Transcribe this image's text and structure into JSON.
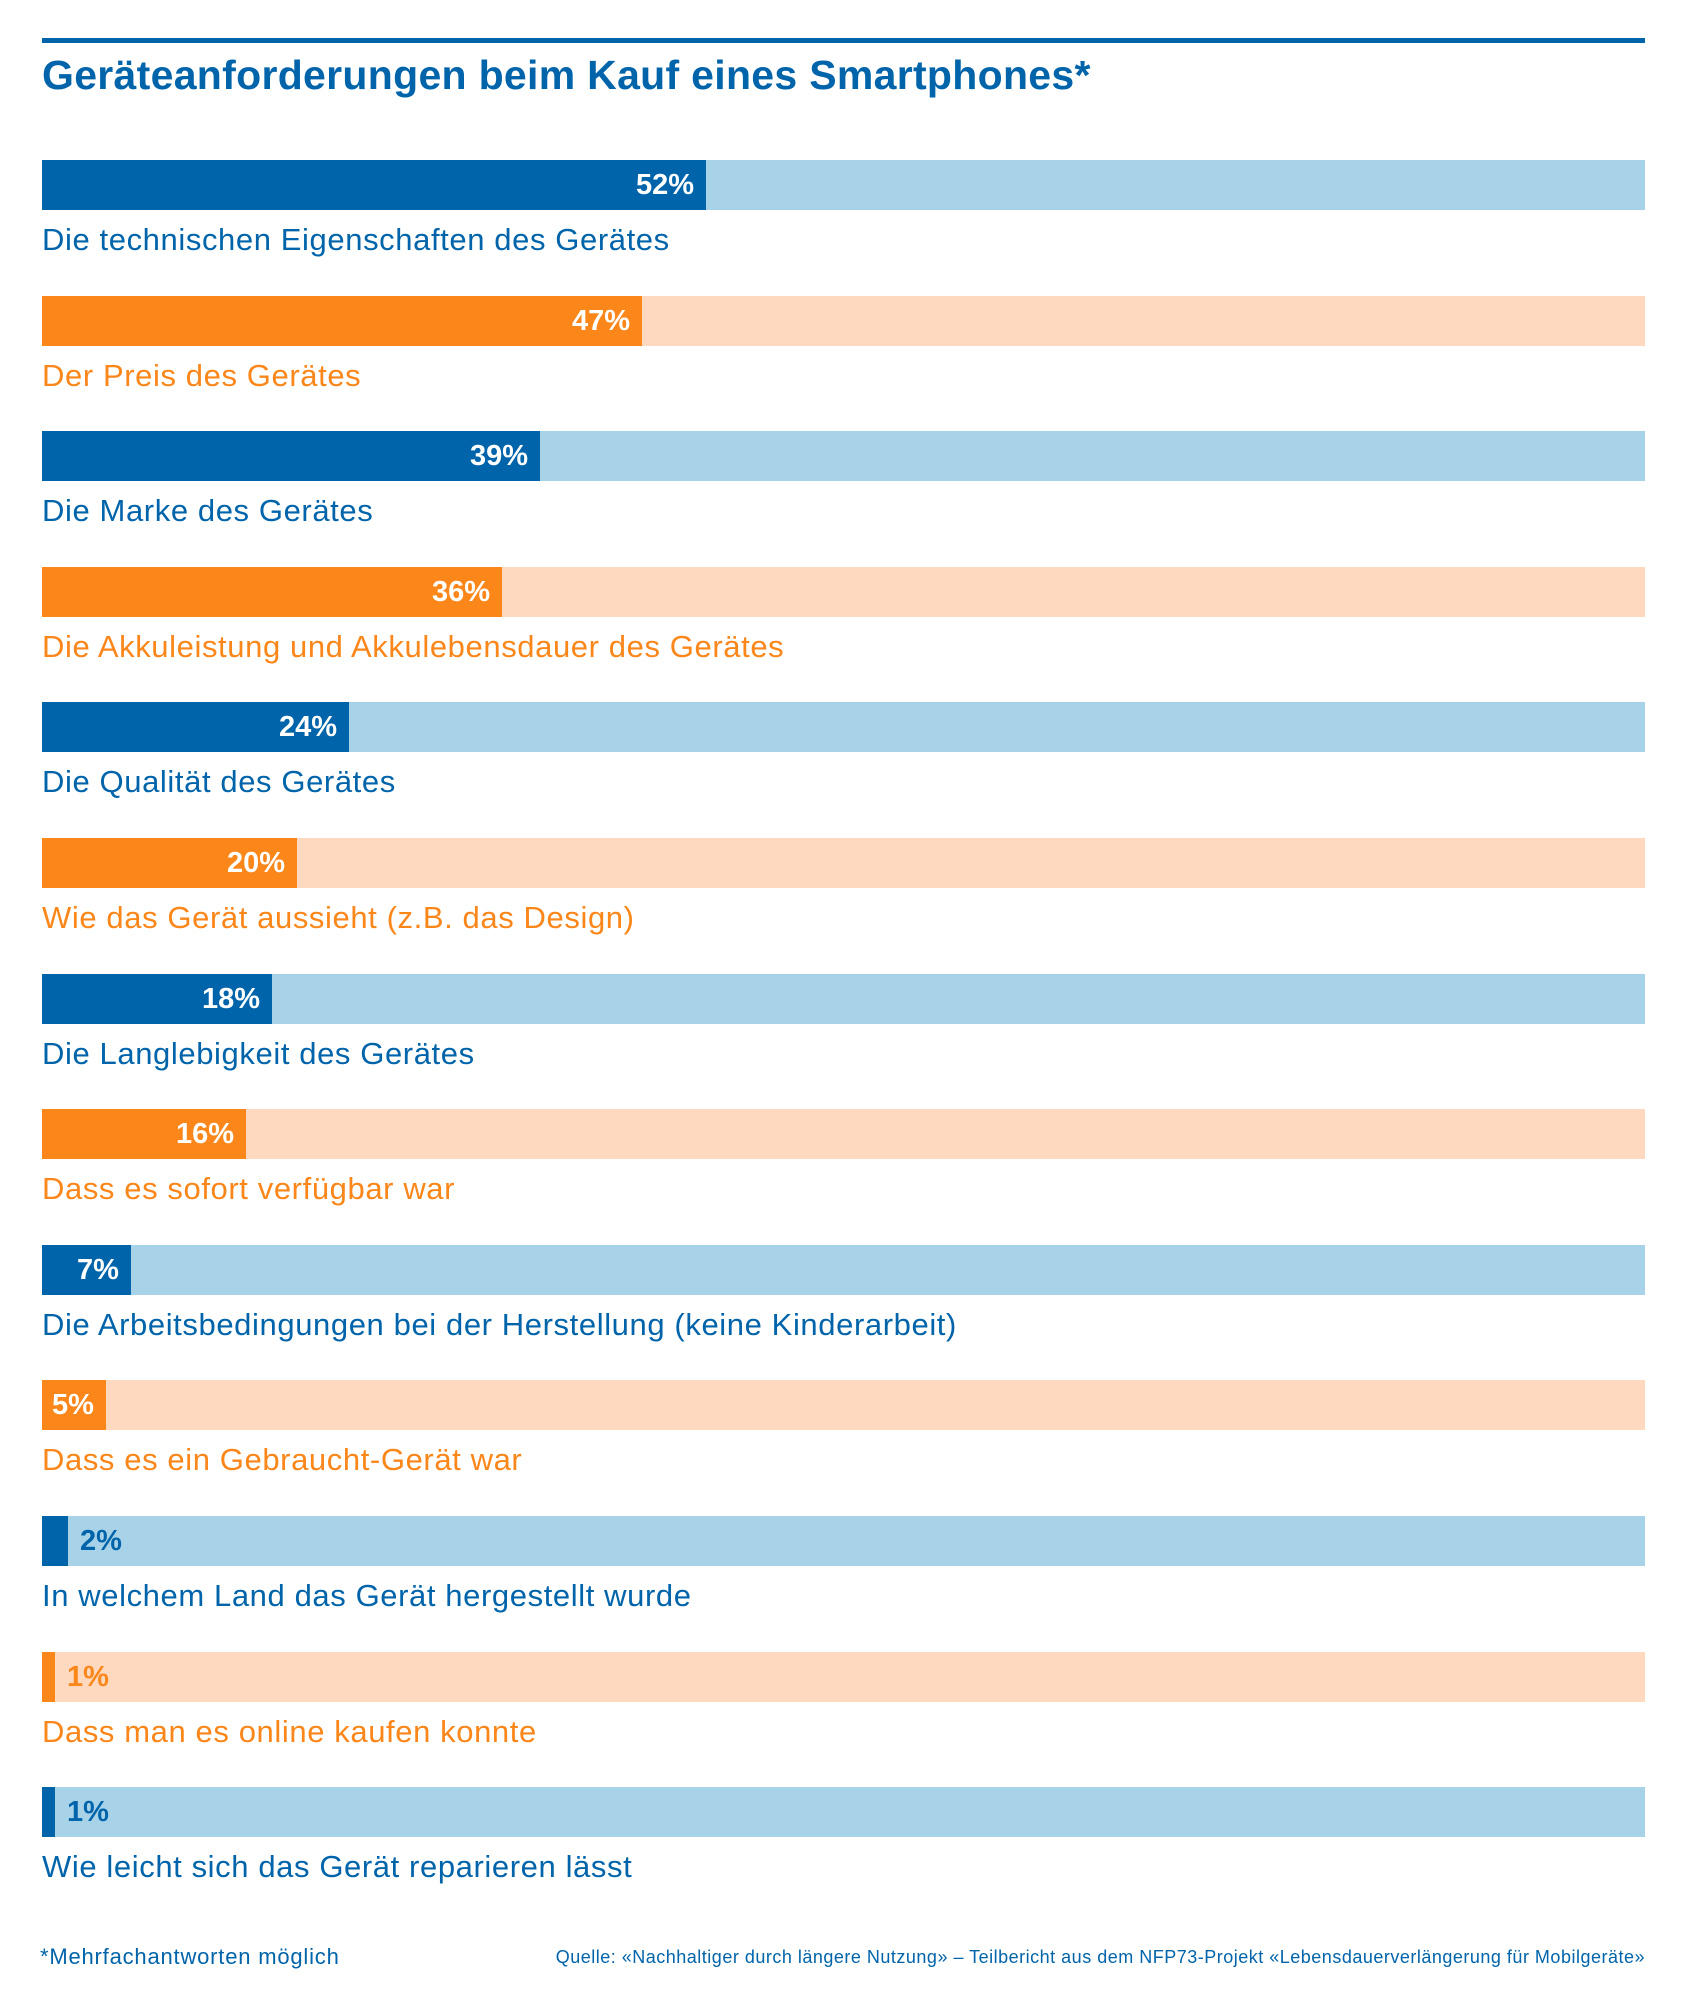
{
  "title": "Geräteanforderungen beim Kauf eines Smartphones*",
  "footnote": "*Mehrfachantworten möglich",
  "source": "Quelle: «Nachhaltiger durch längere Nutzung» – Teilbericht aus dem NFP73-Projekt «Lebensdauerverlängerung für Mobilgeräte»",
  "colors": {
    "blue": "#0064aa",
    "blue_light": "#a8d2e8",
    "orange": "#fb8619",
    "orange_light": "#fed9bf"
  },
  "chart_data": {
    "type": "bar",
    "orientation": "horizontal",
    "xlim": [
      0,
      100
    ],
    "grid": false,
    "categories": [
      "Die technischen Eigenschaften des Gerätes",
      "Der Preis des Gerätes",
      "Die Marke des Gerätes",
      "Die Akkuleistung und Akkulebensdauer des Gerätes",
      "Die Qualität des Gerätes",
      "Wie das Gerät aussieht (z.B. das Design)",
      "Die Langlebigkeit des Gerätes",
      "Dass es sofort verfügbar war",
      "Die Arbeitsbedingungen bei der Herstellung (keine Kinderarbeit)",
      "Dass es ein Gebraucht-Gerät war",
      "In welchem Land das Gerät hergestellt wurde",
      "Dass man es online kaufen konnte",
      "Wie leicht sich das Gerät reparieren lässt"
    ],
    "values": [
      52,
      47,
      39,
      36,
      24,
      20,
      18,
      16,
      7,
      5,
      2,
      1,
      1
    ],
    "value_labels": [
      "52%",
      "47%",
      "39%",
      "36%",
      "24%",
      "20%",
      "18%",
      "16%",
      "7%",
      "5%",
      "2%",
      "1%",
      "1%"
    ],
    "bar_colors": [
      "blue",
      "orange",
      "blue",
      "orange",
      "blue",
      "orange",
      "blue",
      "orange",
      "blue",
      "orange",
      "blue",
      "orange",
      "blue"
    ]
  }
}
